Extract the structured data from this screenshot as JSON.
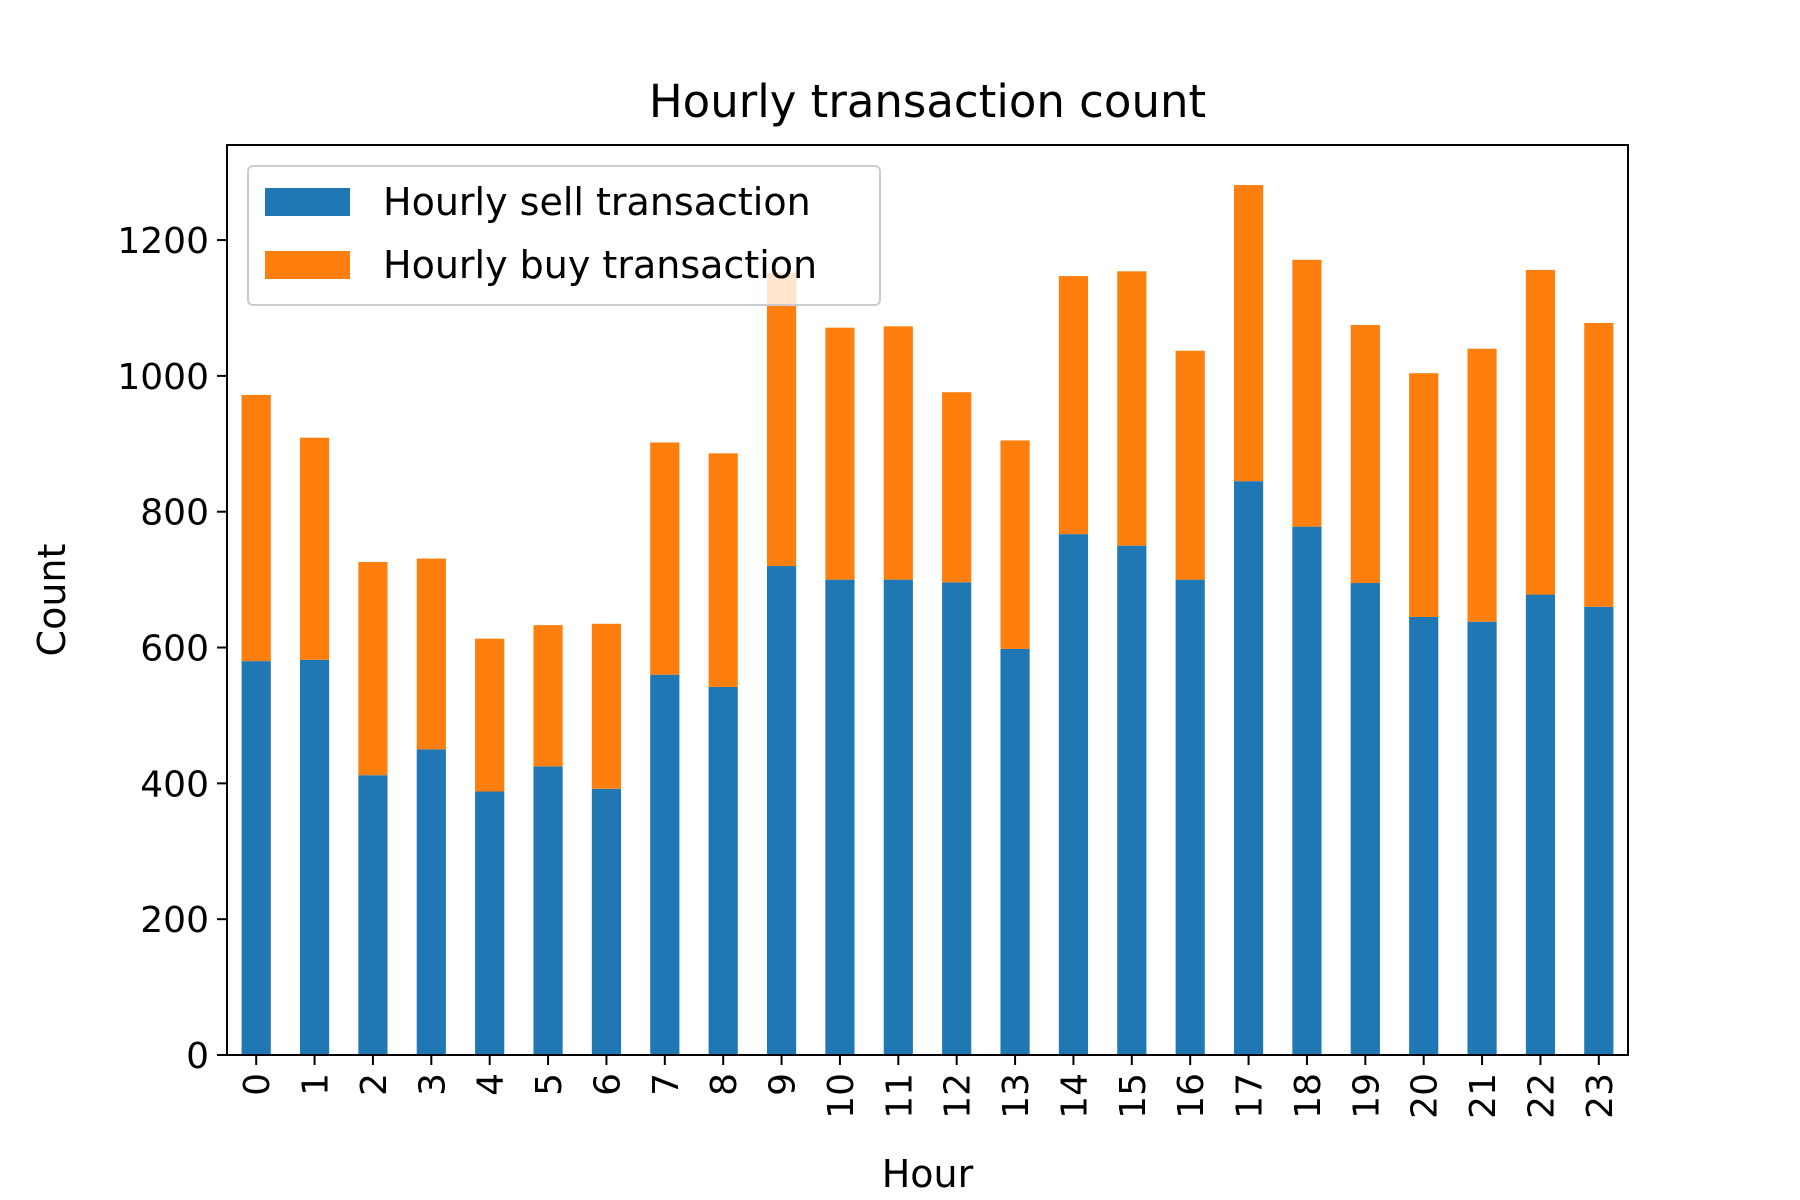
{
  "chart_data": {
    "type": "bar",
    "stacked": true,
    "title": "Hourly transaction count",
    "xlabel": "Hour",
    "ylabel": "Count",
    "ylim": [
      0,
      1340
    ],
    "yticks": [
      0,
      200,
      400,
      600,
      800,
      1000,
      1200
    ],
    "grid": false,
    "legend_position": "top-left",
    "categories": [
      "0",
      "1",
      "2",
      "3",
      "4",
      "5",
      "6",
      "7",
      "8",
      "9",
      "10",
      "11",
      "12",
      "13",
      "14",
      "15",
      "16",
      "17",
      "18",
      "19",
      "20",
      "21",
      "22",
      "23"
    ],
    "series": [
      {
        "name": "Hourly sell transaction",
        "color": "#1f77b4",
        "values": [
          580,
          582,
          412,
          450,
          388,
          425,
          392,
          560,
          542,
          720,
          700,
          700,
          696,
          598,
          767,
          750,
          700,
          845,
          778,
          695,
          645,
          638,
          678,
          660
        ]
      },
      {
        "name": "Hourly buy transaction",
        "color": "#ff7f0e",
        "values": [
          392,
          327,
          314,
          281,
          225,
          208,
          243,
          342,
          344,
          432,
          371,
          373,
          280,
          307,
          380,
          404,
          337,
          436,
          393,
          380,
          359,
          402,
          478,
          418
        ]
      }
    ]
  }
}
